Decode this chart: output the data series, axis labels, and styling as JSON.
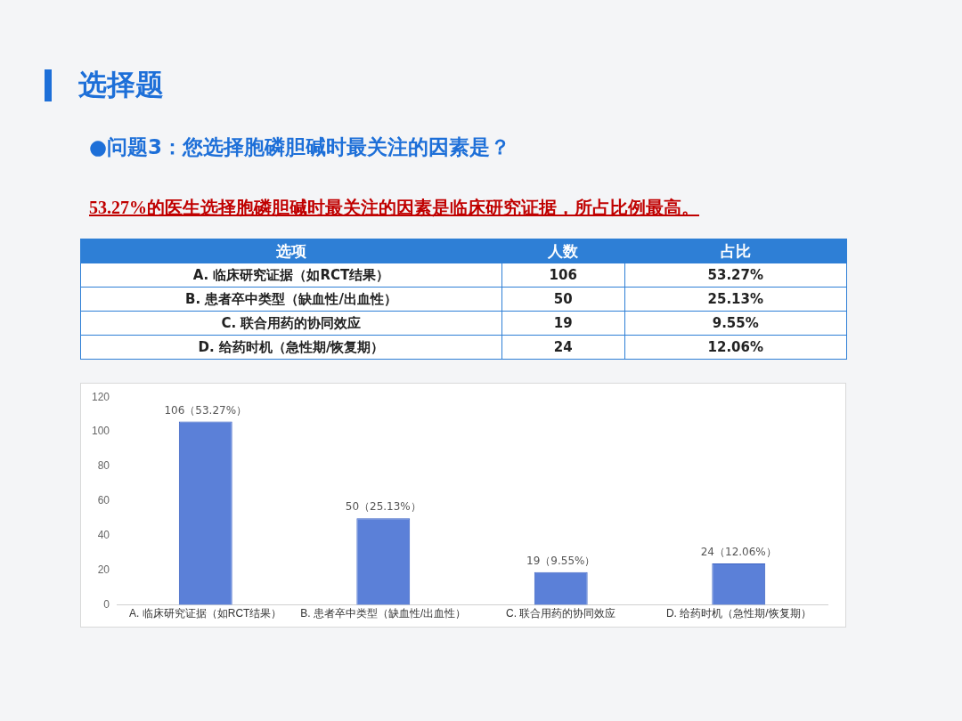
{
  "chart_data": {
    "type": "bar",
    "title": "选择题",
    "subtitle": "●问题3：您选择胞磷胆碱时最关注的因素是？",
    "annotations": [
      "53.27%的医生选择胞磷胆碱时最关注的因素是临床研究证据，所占比例最高。",
      "选项",
      "人数",
      "占比",
      "53.27%",
      "25.13%",
      "9.55%",
      "12.06%",
      "106",
      "50",
      "19",
      "24"
    ],
    "categories": [
      "A. 临床研究证据（如RCT结果）",
      "B. 患者卒中类型（缺血性/出血性）",
      "C. 联合用药的协同效应",
      "D. 给药时机（急性期/恢复期）"
    ],
    "values": [
      106,
      50,
      19,
      24
    ],
    "value_labels": [
      "106（53.27%）",
      "50（25.13%）",
      "19（9.55%）",
      "24（12.06%）"
    ],
    "color": "#5b80d8",
    "ylim": [
      0,
      120
    ],
    "yticks": [
      0,
      20,
      40,
      60,
      80,
      100,
      120
    ],
    "grid": false,
    "legend": false
  }
}
